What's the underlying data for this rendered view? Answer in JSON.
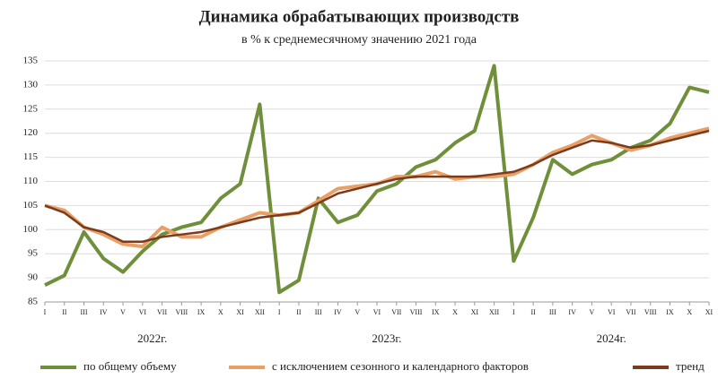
{
  "chart_data": {
    "type": "line",
    "title": "Динамика обрабатывающих производств",
    "subtitle": "в % к среднемесячному значению 2021  года",
    "categories": [
      "I",
      "II",
      "III",
      "IV",
      "V",
      "VI",
      "VII",
      "VIII",
      "IX",
      "X",
      "XI",
      "XII",
      "I",
      "II",
      "III",
      "IV",
      "V",
      "VI",
      "VII",
      "VIII",
      "IX",
      "X",
      "XI",
      "XII",
      "I",
      "II",
      "III",
      "IV",
      "V",
      "VI",
      "VII",
      "VIII",
      "IX",
      "X",
      "XI"
    ],
    "year_labels": [
      "2022г.",
      "2023г.",
      "2024г."
    ],
    "series": [
      {
        "name": "по общему объему",
        "color": "#6f8f3a",
        "values": [
          88.5,
          90.5,
          99.5,
          94,
          91.2,
          95.5,
          99,
          100.5,
          101.5,
          106.5,
          109.5,
          126,
          87,
          89.5,
          106.5,
          101.5,
          103,
          108,
          109.5,
          113,
          114.5,
          118,
          120.5,
          134,
          93.5,
          102.5,
          114.5,
          111.5,
          113.5,
          114.5,
          117,
          118.5,
          122,
          129.5,
          128.5
        ]
      },
      {
        "name": "с исключением  сезонного и календарного факторов",
        "color": "#e9a066",
        "values": [
          105,
          104,
          100.5,
          99,
          97,
          96.5,
          100.5,
          98.5,
          98.5,
          100.5,
          102,
          103.5,
          103,
          103.5,
          106,
          108.5,
          109,
          109.5,
          111,
          111,
          112,
          110.5,
          111,
          111,
          111.5,
          113.5,
          116,
          117.5,
          119.5,
          118,
          116.5,
          117.5,
          119,
          120,
          121
        ]
      },
      {
        "name": "тренд",
        "color": "#7b3b1c",
        "values": [
          105,
          103.5,
          100.5,
          99.5,
          97.5,
          97.5,
          98.5,
          99,
          99.5,
          100.5,
          101.5,
          102.5,
          103,
          103.5,
          105.5,
          107.5,
          108.5,
          109.5,
          110.5,
          111,
          111,
          111,
          111,
          111.5,
          112,
          113.5,
          115.5,
          117,
          118.5,
          118,
          117,
          117.5,
          118.5,
          119.5,
          120.5
        ]
      }
    ],
    "ylim": [
      85,
      135
    ],
    "yticks": [
      85,
      90,
      95,
      100,
      105,
      110,
      115,
      120,
      125,
      130,
      135
    ],
    "grid": true
  }
}
